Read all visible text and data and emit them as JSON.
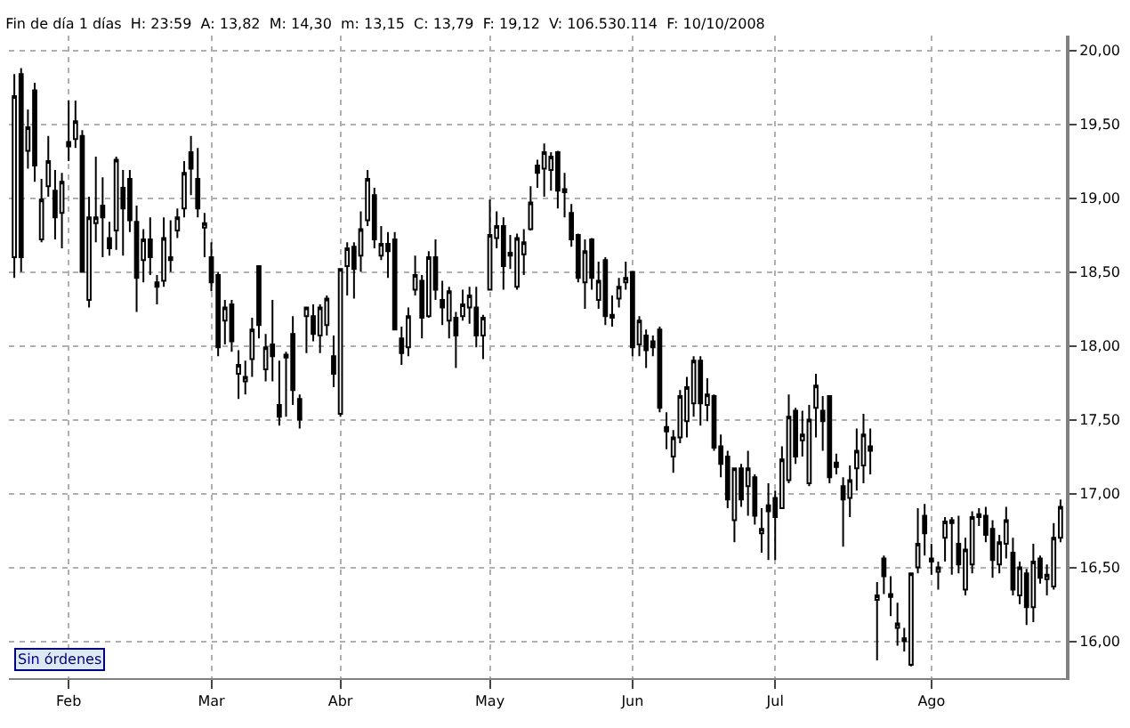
{
  "chart_data": {
    "type": "candlestick",
    "title": "Fin de día 1 días  H: 23:59  A: 13,82  M: 14,30  m: 13,15  C: 13,79  F: 19,12  V: 106.530.114  F: 10/10/2008",
    "annotations": [
      "Sin órdenes"
    ],
    "categories": [
      null,
      null,
      null,
      null,
      null,
      null,
      null,
      null,
      "Feb",
      null,
      null,
      null,
      null,
      null,
      null,
      null,
      null,
      null,
      null,
      null,
      null,
      null,
      null,
      null,
      null,
      null,
      null,
      null,
      null,
      "Mar",
      null,
      null,
      null,
      null,
      null,
      null,
      null,
      null,
      null,
      null,
      null,
      null,
      null,
      null,
      null,
      null,
      null,
      null,
      "Abr",
      null,
      null,
      null,
      null,
      null,
      null,
      null,
      null,
      null,
      null,
      null,
      null,
      null,
      null,
      null,
      null,
      null,
      null,
      null,
      null,
      null,
      "May",
      null,
      null,
      null,
      null,
      null,
      null,
      null,
      null,
      null,
      null,
      null,
      null,
      null,
      null,
      null,
      null,
      null,
      null,
      null,
      null,
      "Jun",
      null,
      null,
      null,
      null,
      null,
      null,
      null,
      null,
      null,
      null,
      null,
      null,
      null,
      null,
      null,
      null,
      null,
      null,
      null,
      null,
      "Jul",
      null,
      null,
      null,
      null,
      null,
      null,
      null,
      null,
      null,
      null,
      null,
      null,
      null,
      null,
      null,
      null,
      null,
      null,
      null,
      null,
      null,
      null,
      "Ago",
      null,
      null,
      null,
      null,
      null,
      null,
      null,
      null,
      null,
      null,
      null,
      null,
      null,
      null,
      null,
      null,
      null,
      null,
      null
    ],
    "ohlc": [
      [
        18.6,
        19.84,
        18.46,
        19.69
      ],
      [
        19.84,
        19.88,
        18.5,
        18.6
      ],
      [
        19.32,
        19.6,
        19.2,
        19.48
      ],
      [
        19.73,
        19.78,
        19.11,
        19.22
      ],
      [
        18.72,
        19.13,
        18.7,
        18.99
      ],
      [
        19.08,
        19.42,
        19.01,
        19.25
      ],
      [
        19.05,
        19.19,
        18.72,
        18.87
      ],
      [
        18.9,
        19.17,
        18.66,
        19.11
      ],
      [
        19.38,
        19.66,
        19.25,
        19.35
      ],
      [
        19.4,
        19.66,
        19.34,
        19.52
      ],
      [
        19.42,
        19.46,
        18.5,
        18.5
      ],
      [
        18.31,
        19.01,
        18.26,
        18.87
      ],
      [
        18.83,
        19.28,
        18.7,
        18.87
      ],
      [
        18.95,
        19.14,
        18.6,
        18.87
      ],
      [
        18.73,
        18.84,
        18.61,
        18.66
      ],
      [
        18.78,
        19.28,
        18.65,
        19.26
      ],
      [
        19.07,
        19.19,
        18.61,
        18.93
      ],
      [
        19.13,
        19.19,
        18.77,
        18.85
      ],
      [
        18.84,
        18.95,
        18.23,
        18.46
      ],
      [
        18.58,
        18.79,
        18.43,
        18.72
      ],
      [
        18.72,
        18.87,
        18.48,
        18.6
      ],
      [
        18.43,
        18.48,
        18.28,
        18.4
      ],
      [
        18.44,
        18.87,
        18.4,
        18.73
      ],
      [
        18.58,
        18.85,
        18.5,
        18.6
      ],
      [
        18.78,
        18.93,
        18.73,
        18.87
      ],
      [
        18.93,
        19.25,
        18.87,
        19.17
      ],
      [
        19.31,
        19.42,
        19.02,
        19.2
      ],
      [
        19.13,
        19.34,
        18.87,
        18.93
      ],
      [
        18.8,
        18.9,
        18.6,
        18.83
      ],
      [
        18.6,
        18.7,
        18.37,
        18.43
      ],
      [
        18.48,
        18.5,
        17.93,
        17.99
      ],
      [
        18.17,
        18.31,
        18.01,
        18.26
      ],
      [
        18.28,
        18.31,
        17.96,
        18.03
      ],
      [
        17.81,
        17.97,
        17.64,
        17.87
      ],
      [
        17.76,
        17.9,
        17.67,
        17.79
      ],
      [
        17.91,
        18.19,
        17.79,
        18.11
      ],
      [
        18.54,
        18.54,
        18.05,
        18.14
      ],
      [
        17.84,
        18.08,
        17.76,
        17.99
      ],
      [
        18.01,
        18.31,
        17.76,
        17.93
      ],
      [
        17.6,
        17.9,
        17.46,
        17.52
      ],
      [
        17.92,
        17.96,
        17.52,
        17.94
      ],
      [
        18.08,
        18.2,
        17.6,
        17.7
      ],
      [
        17.64,
        17.67,
        17.44,
        17.5
      ],
      [
        18.2,
        18.26,
        17.95,
        18.26
      ],
      [
        18.2,
        18.28,
        18.03,
        18.08
      ],
      [
        18.07,
        18.28,
        17.95,
        18.26
      ],
      [
        18.14,
        18.34,
        18.07,
        18.32
      ],
      [
        17.93,
        18.07,
        17.72,
        17.81
      ],
      [
        17.54,
        18.52,
        17.52,
        18.52
      ],
      [
        18.54,
        18.7,
        18.34,
        18.66
      ],
      [
        18.67,
        18.7,
        18.32,
        18.52
      ],
      [
        18.61,
        18.91,
        18.5,
        18.79
      ],
      [
        18.85,
        19.19,
        18.81,
        19.13
      ],
      [
        19.02,
        19.07,
        18.66,
        18.72
      ],
      [
        18.61,
        18.81,
        18.58,
        18.69
      ],
      [
        18.69,
        18.77,
        18.46,
        18.64
      ],
      [
        18.72,
        18.77,
        18.11,
        18.11
      ],
      [
        18.05,
        18.13,
        17.87,
        17.95
      ],
      [
        17.99,
        18.26,
        17.93,
        18.2
      ],
      [
        18.38,
        18.61,
        18.34,
        18.48
      ],
      [
        18.44,
        18.48,
        18.05,
        18.19
      ],
      [
        18.2,
        18.64,
        18.19,
        18.6
      ],
      [
        18.6,
        18.72,
        18.31,
        18.38
      ],
      [
        18.31,
        18.44,
        18.14,
        18.26
      ],
      [
        18.17,
        18.4,
        18.05,
        18.37
      ],
      [
        18.19,
        18.23,
        17.85,
        18.07
      ],
      [
        18.2,
        18.38,
        18.17,
        18.28
      ],
      [
        18.26,
        18.4,
        18.15,
        18.34
      ],
      [
        18.26,
        18.4,
        17.99,
        18.07
      ],
      [
        18.07,
        18.21,
        17.91,
        18.19
      ],
      [
        18.38,
        18.99,
        18.38,
        18.75
      ],
      [
        18.73,
        18.91,
        18.66,
        18.81
      ],
      [
        18.81,
        18.87,
        18.38,
        18.54
      ],
      [
        18.63,
        18.75,
        18.52,
        18.61
      ],
      [
        18.4,
        18.76,
        18.38,
        18.73
      ],
      [
        18.62,
        18.79,
        18.48,
        18.7
      ],
      [
        18.79,
        19.08,
        18.78,
        18.97
      ],
      [
        19.22,
        19.26,
        19.07,
        19.17
      ],
      [
        19.2,
        19.37,
        19.01,
        19.31
      ],
      [
        19.19,
        19.31,
        19.05,
        19.28
      ],
      [
        19.31,
        19.32,
        18.93,
        19.05
      ],
      [
        19.06,
        19.17,
        18.87,
        19.04
      ],
      [
        18.9,
        18.96,
        18.67,
        18.72
      ],
      [
        18.75,
        18.76,
        18.43,
        18.46
      ],
      [
        18.43,
        18.72,
        18.25,
        18.64
      ],
      [
        18.72,
        18.73,
        18.38,
        18.46
      ],
      [
        18.31,
        18.57,
        18.25,
        18.44
      ],
      [
        18.58,
        18.6,
        18.14,
        18.2
      ],
      [
        18.21,
        18.34,
        18.13,
        18.19
      ],
      [
        18.32,
        18.46,
        18.26,
        18.4
      ],
      [
        18.43,
        18.57,
        18.38,
        18.46
      ],
      [
        18.5,
        18.5,
        17.93,
        17.99
      ],
      [
        18.01,
        18.2,
        17.93,
        18.17
      ],
      [
        18.07,
        18.11,
        17.85,
        17.97
      ],
      [
        18.03,
        18.07,
        17.93,
        17.99
      ],
      [
        18.11,
        18.13,
        17.55,
        17.58
      ],
      [
        17.45,
        17.55,
        17.3,
        17.42
      ],
      [
        17.25,
        17.43,
        17.14,
        17.38
      ],
      [
        17.38,
        17.7,
        17.34,
        17.66
      ],
      [
        17.49,
        17.79,
        17.38,
        17.72
      ],
      [
        17.61,
        17.93,
        17.52,
        17.9
      ],
      [
        17.9,
        17.93,
        17.46,
        17.61
      ],
      [
        17.6,
        17.78,
        17.49,
        17.67
      ],
      [
        17.66,
        17.67,
        17.29,
        17.31
      ],
      [
        17.32,
        17.4,
        17.11,
        17.2
      ],
      [
        17.25,
        17.29,
        16.9,
        16.96
      ],
      [
        16.82,
        17.17,
        16.67,
        17.17
      ],
      [
        17.17,
        17.2,
        16.91,
        16.96
      ],
      [
        17.05,
        17.29,
        16.85,
        17.17
      ],
      [
        17.11,
        17.13,
        16.79,
        16.85
      ],
      [
        16.73,
        16.9,
        16.6,
        16.76
      ],
      [
        16.92,
        17.07,
        16.55,
        16.88
      ],
      [
        16.97,
        17.02,
        16.55,
        16.84
      ],
      [
        16.9,
        17.32,
        16.9,
        17.23
      ],
      [
        17.09,
        17.67,
        17.07,
        17.52
      ],
      [
        17.56,
        17.58,
        17.2,
        17.25
      ],
      [
        17.36,
        17.56,
        17.25,
        17.4
      ],
      [
        17.07,
        17.6,
        17.05,
        17.5
      ],
      [
        17.58,
        17.81,
        17.38,
        17.73
      ],
      [
        17.56,
        17.66,
        17.29,
        17.49
      ],
      [
        17.66,
        17.66,
        17.07,
        17.11
      ],
      [
        17.21,
        17.27,
        17.13,
        17.18
      ],
      [
        17.05,
        17.11,
        16.64,
        16.96
      ],
      [
        16.97,
        17.19,
        16.84,
        17.09
      ],
      [
        17.17,
        17.44,
        17.02,
        17.29
      ],
      [
        17.19,
        17.54,
        17.07,
        17.4
      ],
      [
        17.32,
        17.44,
        17.13,
        17.29
      ],
      [
        16.28,
        16.4,
        15.87,
        16.31
      ],
      [
        16.56,
        16.58,
        16.32,
        16.44
      ],
      [
        16.32,
        16.44,
        16.17,
        16.3
      ],
      [
        16.09,
        16.26,
        15.97,
        16.12
      ],
      [
        16.02,
        16.09,
        15.93,
        16.0
      ],
      [
        15.84,
        16.46,
        15.83,
        16.46
      ],
      [
        16.5,
        16.9,
        16.46,
        16.66
      ],
      [
        16.85,
        16.93,
        16.58,
        16.73
      ],
      [
        16.56,
        16.66,
        16.45,
        16.54
      ],
      [
        16.47,
        16.54,
        16.35,
        16.5
      ],
      [
        16.7,
        16.84,
        16.54,
        16.81
      ],
      [
        16.8,
        16.84,
        16.45,
        16.82
      ],
      [
        16.66,
        16.85,
        16.46,
        16.52
      ],
      [
        16.35,
        16.7,
        16.31,
        16.62
      ],
      [
        16.52,
        16.88,
        16.46,
        16.84
      ],
      [
        16.84,
        16.9,
        16.78,
        16.86
      ],
      [
        16.85,
        16.91,
        16.67,
        16.72
      ],
      [
        16.76,
        16.82,
        16.43,
        16.55
      ],
      [
        16.52,
        16.72,
        16.46,
        16.67
      ],
      [
        16.66,
        16.91,
        16.56,
        16.82
      ],
      [
        16.6,
        16.7,
        16.31,
        16.35
      ],
      [
        16.31,
        16.54,
        16.25,
        16.5
      ],
      [
        16.46,
        16.49,
        16.11,
        16.23
      ],
      [
        16.23,
        16.66,
        16.13,
        16.54
      ],
      [
        16.56,
        16.58,
        16.39,
        16.43
      ],
      [
        16.42,
        16.52,
        16.31,
        16.45
      ],
      [
        16.37,
        16.8,
        16.35,
        16.7
      ],
      [
        16.7,
        16.96,
        16.67,
        16.91
      ]
    ],
    "ylim": [
      15.75,
      20.1
    ],
    "yticks": [
      {
        "value": 16,
        "label": "16,00"
      },
      {
        "value": 16.5,
        "label": "16,50"
      },
      {
        "value": 17,
        "label": "17,00"
      },
      {
        "value": 17.5,
        "label": "17,50"
      },
      {
        "value": 18,
        "label": "18,00"
      },
      {
        "value": 18.5,
        "label": "18,50"
      },
      {
        "value": 19,
        "label": "19,00"
      },
      {
        "value": 19.5,
        "label": "19,50"
      },
      {
        "value": 20,
        "label": "20,00"
      }
    ],
    "grid": true
  }
}
